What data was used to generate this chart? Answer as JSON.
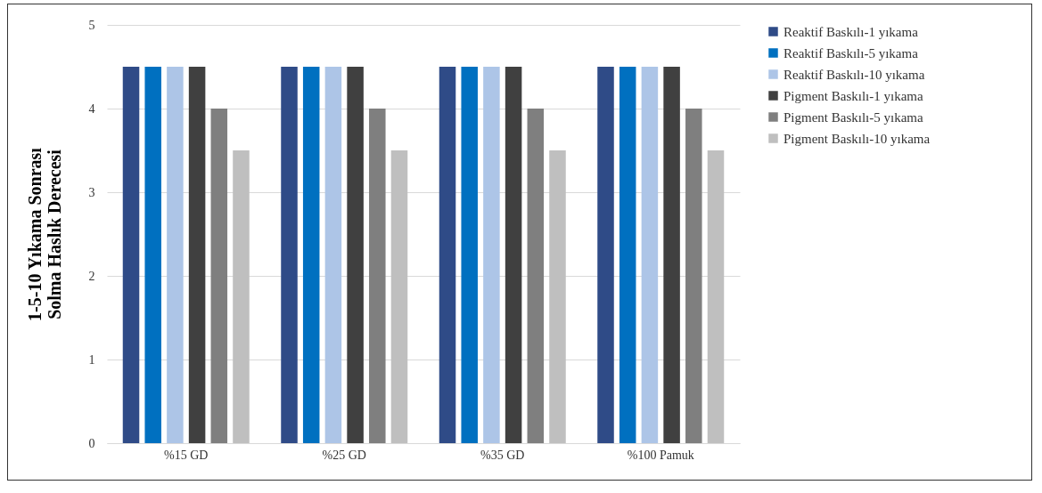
{
  "chart_data": {
    "type": "bar",
    "ylabel": "1-5-10 Yıkama Sonrası\nSolma Haslık Derecesi",
    "categories": [
      "%15 GD",
      "%25 GD",
      "%35 GD",
      "%100 Pamuk"
    ],
    "series": [
      {
        "name": "Reaktif Baskılı-1 yıkama",
        "color": "#2f4b87",
        "values": [
          4.5,
          4.5,
          4.5,
          4.5
        ]
      },
      {
        "name": "Reaktif Baskılı-5 yıkama",
        "color": "#0070c0",
        "values": [
          4.5,
          4.5,
          4.5,
          4.5
        ]
      },
      {
        "name": "Reaktif Baskılı-10 yıkama",
        "color": "#adc5e7",
        "values": [
          4.5,
          4.5,
          4.5,
          4.5
        ]
      },
      {
        "name": "Pigment Baskılı-1 yıkama",
        "color": "#404040",
        "values": [
          4.5,
          4.5,
          4.5,
          4.5
        ]
      },
      {
        "name": "Pigment Baskılı-5 yıkama",
        "color": "#7f7f7f",
        "values": [
          4,
          4,
          4,
          4
        ]
      },
      {
        "name": "Pigment Baskılı-10 yıkama",
        "color": "#bfbfbf",
        "values": [
          3.5,
          3.5,
          3.5,
          3.5
        ]
      }
    ],
    "ylim": [
      0,
      5
    ],
    "yticks": [
      0,
      1,
      2,
      3,
      4,
      5
    ],
    "grid": "y",
    "legend": "right"
  }
}
